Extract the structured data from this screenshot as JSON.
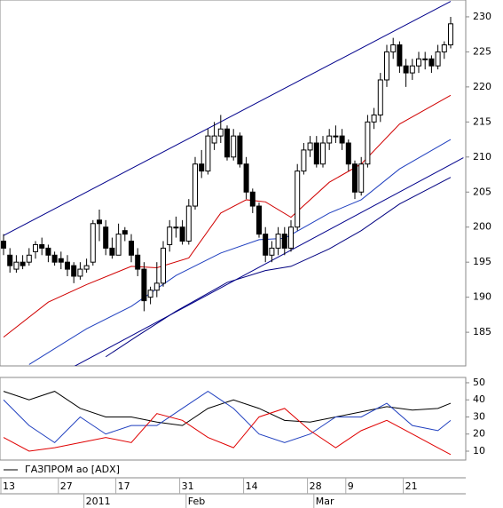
{
  "chart_data": {
    "type": "candlestick",
    "legend": "ГАЗПРОМ ао [ADX]",
    "categories": [
      "13",
      null,
      null,
      null,
      null,
      null,
      null,
      null,
      null,
      "27",
      null,
      null,
      null,
      null,
      null,
      null,
      null,
      null,
      "17",
      null,
      null,
      null,
      null,
      null,
      null,
      null,
      null,
      null,
      "31",
      null,
      null,
      null,
      null,
      null,
      null,
      null,
      null,
      null,
      "14",
      null,
      null,
      null,
      null,
      null,
      null,
      null,
      null,
      null,
      "28",
      null,
      null,
      null,
      null,
      null,
      "9",
      null,
      null,
      null,
      null,
      null,
      null,
      null,
      null,
      "21",
      null,
      null,
      null,
      null,
      null,
      null,
      null
    ],
    "months": [
      {
        "label": "2011",
        "category": 13
      },
      {
        "label": "Feb",
        "category": 29
      },
      {
        "label": "Mar",
        "category": 49
      }
    ],
    "open": [
      198,
      196,
      194,
      195,
      195,
      196.5,
      197.5,
      197,
      196,
      195.5,
      195,
      194.5,
      193,
      194,
      195,
      201,
      200,
      197,
      196,
      199.5,
      198,
      196,
      194,
      190,
      191,
      192,
      197.5,
      200,
      200,
      198,
      203,
      209,
      208,
      212,
      213,
      214,
      210,
      213,
      209,
      205,
      203,
      199,
      196,
      197,
      199,
      197,
      200,
      208,
      211,
      212,
      209,
      212,
      213,
      213,
      212,
      209,
      205,
      209,
      215,
      216,
      221,
      225,
      226,
      223,
      222,
      223,
      224,
      224,
      223,
      225,
      226
    ],
    "high": [
      199,
      197,
      196,
      196,
      197,
      198,
      198.5,
      197.5,
      196.5,
      196.5,
      196,
      195,
      195,
      195.5,
      201,
      202.5,
      201,
      198.5,
      200.5,
      200,
      199,
      197,
      195,
      191.5,
      195,
      198,
      201,
      201.5,
      201,
      204,
      210,
      211,
      214,
      215,
      216,
      214.5,
      214,
      213.5,
      210,
      205.5,
      203.5,
      200,
      198,
      200,
      200,
      201,
      209,
      212,
      213,
      213,
      213,
      214,
      214.5,
      214,
      212.5,
      209.5,
      210,
      216,
      217,
      222,
      226,
      227,
      226.5,
      224,
      224,
      225,
      225,
      224.5,
      226,
      226.5,
      230
    ],
    "low": [
      196,
      193.5,
      193.5,
      194,
      194.5,
      195.5,
      196,
      195,
      194.5,
      194,
      193,
      192,
      192.5,
      193.5,
      194.5,
      198,
      196,
      195.5,
      196,
      198,
      195,
      193,
      188,
      189,
      190,
      191.5,
      196.5,
      198.5,
      197.5,
      197.5,
      202.5,
      207,
      207.5,
      211,
      212,
      209.5,
      209.5,
      208.5,
      204,
      202,
      198.5,
      195,
      195,
      196,
      196,
      196.5,
      199.5,
      207.5,
      210,
      208.5,
      208.5,
      211,
      212,
      211,
      208,
      204,
      204.5,
      208.5,
      214,
      215,
      220,
      224,
      222,
      220,
      221,
      222,
      222.5,
      222,
      222.5,
      224,
      225.5
    ],
    "close": [
      197,
      194.5,
      195,
      194.5,
      196,
      197.5,
      197,
      196,
      195,
      195,
      194,
      193,
      194,
      194.5,
      200.5,
      200.5,
      197,
      196,
      199,
      199,
      196,
      194,
      189.5,
      191,
      192,
      197,
      200,
      200,
      198,
      203,
      209,
      208,
      213,
      213,
      214,
      210,
      213,
      209,
      205,
      203,
      199,
      196,
      197,
      199,
      197,
      200,
      208,
      211,
      212,
      209,
      212,
      213,
      213,
      212,
      209,
      205,
      209,
      215,
      216,
      221,
      225,
      226,
      223,
      222,
      223,
      224,
      224,
      223,
      225,
      226,
      229
    ],
    "overlays": [
      {
        "color": "#00008b",
        "x": [
          0,
          70
        ],
        "values": [
          198.8,
          232.2
        ]
      },
      {
        "color": "#00008b",
        "x": [
          11,
          72
        ],
        "values": [
          180.1,
          209.9
        ]
      },
      {
        "color": "#d00000",
        "x": [
          0,
          7,
          13,
          20,
          24,
          29,
          34,
          38,
          41,
          45,
          51,
          56,
          62,
          70
        ],
        "values": [
          184.3,
          189.3,
          191.8,
          194.4,
          194.2,
          195.6,
          202,
          203.9,
          203.6,
          201.4,
          206.4,
          209,
          214.7,
          218.8
        ]
      },
      {
        "color": "#1f3fbf",
        "x": [
          4,
          13,
          20,
          27,
          34,
          40,
          44,
          51,
          56,
          62,
          70
        ],
        "values": [
          180.4,
          185.5,
          188.7,
          193.1,
          196.3,
          198.2,
          198.4,
          202,
          203.9,
          208.3,
          212.5
        ]
      },
      {
        "color": "#000080",
        "x": [
          16,
          21,
          27,
          35,
          41,
          45,
          51,
          56,
          62,
          70
        ],
        "values": [
          181.5,
          184.5,
          188,
          192.1,
          193.8,
          194.4,
          196.9,
          199.5,
          203.3,
          207.1
        ]
      }
    ],
    "ylim": [
      180.2,
      232.4
    ],
    "yticks": [
      185,
      190,
      195,
      200,
      205,
      210,
      215,
      220,
      225,
      230
    ],
    "indicator": {
      "x": [
        0,
        4,
        8,
        12,
        16,
        20,
        24,
        28,
        32,
        36,
        40,
        44,
        48,
        52,
        56,
        60,
        64,
        68,
        70
      ],
      "series": [
        {
          "color": "#000000",
          "values": [
            45,
            40,
            45,
            35,
            30,
            30,
            27,
            25,
            35,
            40,
            35,
            28,
            27,
            30,
            33,
            36,
            34,
            35,
            38
          ]
        },
        {
          "color": "#1f3fbf",
          "values": [
            40,
            25,
            15,
            30,
            20,
            25,
            25,
            35,
            45,
            35,
            20,
            15,
            20,
            30,
            30,
            38,
            25,
            22,
            28
          ]
        },
        {
          "color": "#e00000",
          "values": [
            18,
            10,
            12,
            15,
            18,
            15,
            32,
            28,
            18,
            12,
            30,
            35,
            22,
            12,
            22,
            28,
            20,
            12,
            8
          ]
        }
      ],
      "ylim": [
        4.8,
        53.1
      ],
      "yticks": [
        10,
        20,
        30,
        40,
        50
      ]
    }
  }
}
